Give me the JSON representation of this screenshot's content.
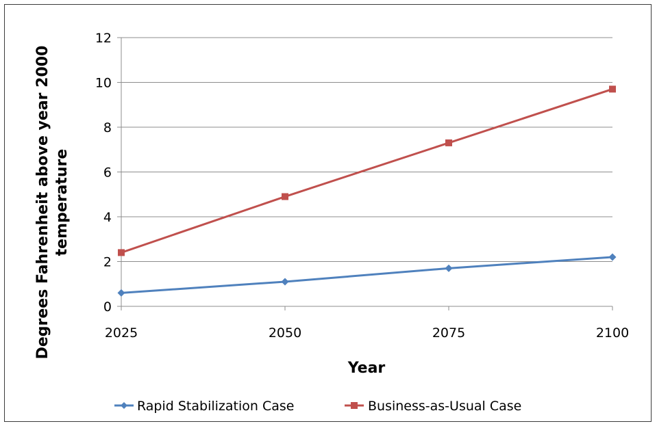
{
  "chart_data": {
    "type": "line",
    "title": "",
    "xlabel": "Year",
    "ylabel_line1": "Degrees Fahrenheit above year 2000",
    "ylabel_line2": "temperature",
    "x": [
      2025,
      2050,
      2075,
      2100
    ],
    "x_tick_labels": [
      "2025",
      "2050",
      "2075",
      "2100"
    ],
    "ylim": [
      0,
      12
    ],
    "y_ticks": [
      0,
      2,
      4,
      6,
      8,
      10,
      12
    ],
    "y_tick_labels": [
      "0",
      "2",
      "4",
      "6",
      "8",
      "10",
      "12"
    ],
    "grid": true,
    "legend_position": "bottom",
    "series": [
      {
        "name": "Rapid Stabilization Case",
        "values": [
          0.6,
          1.1,
          1.7,
          2.2
        ],
        "color": "#4F81BD",
        "marker": "diamond"
      },
      {
        "name": "Business-as-Usual Case",
        "values": [
          2.4,
          4.9,
          7.3,
          9.7
        ],
        "color": "#C0504D",
        "marker": "square"
      }
    ]
  }
}
